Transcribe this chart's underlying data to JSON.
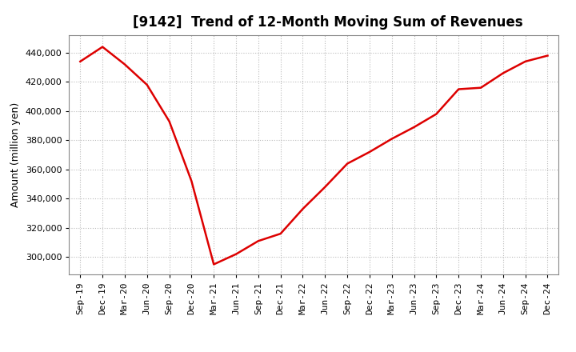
{
  "title": "[9142]  Trend of 12-Month Moving Sum of Revenues",
  "ylabel": "Amount (million yen)",
  "line_color": "#dd0000",
  "background_color": "#ffffff",
  "plot_bg_color": "#ffffff",
  "grid_color": "#bbbbbb",
  "x_labels": [
    "Sep-19",
    "Dec-19",
    "Mar-20",
    "Jun-20",
    "Sep-20",
    "Dec-20",
    "Mar-21",
    "Jun-21",
    "Sep-21",
    "Dec-21",
    "Mar-22",
    "Jun-22",
    "Sep-22",
    "Dec-22",
    "Mar-23",
    "Jun-23",
    "Sep-23",
    "Dec-23",
    "Mar-24",
    "Jun-24",
    "Sep-24",
    "Dec-24"
  ],
  "values": [
    434000,
    444000,
    432000,
    418000,
    393000,
    352000,
    295000,
    302000,
    311000,
    316000,
    333000,
    348000,
    364000,
    372000,
    381000,
    389000,
    398000,
    415000,
    416000,
    426000,
    434000,
    438000
  ],
  "ylim": [
    288000,
    452000
  ],
  "yticks": [
    300000,
    320000,
    340000,
    360000,
    380000,
    400000,
    420000,
    440000
  ],
  "line_width": 1.8,
  "title_fontsize": 12,
  "axis_fontsize": 9,
  "tick_fontsize": 8
}
